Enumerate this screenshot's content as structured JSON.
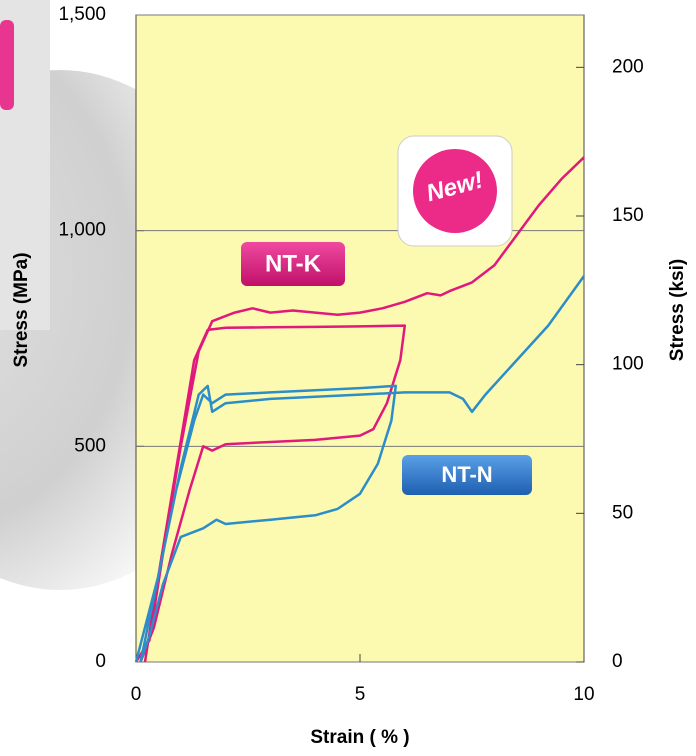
{
  "chart_data": {
    "type": "line",
    "xlabel": "Strain ( % )",
    "ylabel": "Stress (MPa)",
    "y2label": "Stress (ksi)",
    "xlim": [
      0,
      10
    ],
    "xticks": [
      0,
      5,
      10
    ],
    "ylim": [
      0,
      1500
    ],
    "yticks": [
      0,
      500,
      {
        "value": 1000,
        "label": "1,000"
      },
      {
        "value": 1500,
        "label": "1,500"
      }
    ],
    "y2lim": [
      0,
      217.6
    ],
    "y2ticks": [
      0,
      50,
      100,
      150,
      200
    ],
    "grid": true,
    "annotations": [
      "NT-K",
      "NT-N",
      "New!"
    ],
    "series": [
      {
        "name": "NT-K",
        "color": "#e0197d",
        "x": [
          0,
          0.3,
          0.6,
          1.0,
          1.4,
          1.7,
          2.2,
          2.6,
          3.0,
          3.5,
          4.0,
          4.5,
          5.0,
          5.5,
          6.0,
          6.5,
          6.8,
          7.0,
          7.5,
          8.0,
          8.5,
          9.0,
          9.5,
          10,
          null,
          0.2,
          0.5,
          0.9,
          1.3,
          1.6,
          2.0,
          3.0,
          4.0,
          5.0,
          6.0,
          5.9,
          5.6,
          5.3,
          5.0,
          4.0,
          3.0,
          2.0,
          1.7,
          1.5,
          1.2,
          0.8,
          0.4,
          0.1
        ],
        "values": [
          0,
          50,
          250,
          500,
          720,
          790,
          810,
          820,
          810,
          815,
          810,
          805,
          810,
          820,
          835,
          855,
          850,
          860,
          880,
          920,
          990,
          1060,
          1120,
          1170,
          null,
          0,
          200,
          450,
          700,
          770,
          775,
          776,
          777,
          778,
          780,
          700,
          600,
          540,
          525,
          515,
          510,
          505,
          490,
          500,
          400,
          250,
          80,
          0
        ]
      },
      {
        "name": "NT-N",
        "color": "#2c8dc8",
        "x": [
          0,
          0.5,
          1.0,
          1.4,
          1.6,
          1.7,
          2.0,
          3.0,
          4.0,
          5.0,
          6.0,
          7.0,
          7.3,
          7.5,
          7.8,
          8.5,
          9.2,
          10,
          null,
          0.1,
          0.5,
          0.9,
          1.3,
          1.5,
          1.7,
          2.0,
          3.0,
          4.0,
          5.0,
          5.8,
          5.7,
          5.4,
          5.0,
          4.5,
          4.0,
          3.0,
          2.0,
          1.8,
          1.5,
          1.0,
          0.6,
          0.3,
          0.1
        ],
        "values": [
          0,
          200,
          450,
          620,
          640,
          580,
          600,
          610,
          615,
          620,
          625,
          625,
          610,
          580,
          620,
          700,
          780,
          895,
          null,
          0,
          200,
          400,
          560,
          620,
          600,
          620,
          625,
          630,
          635,
          640,
          560,
          460,
          390,
          355,
          340,
          330,
          320,
          330,
          310,
          290,
          180,
          60,
          0
        ]
      }
    ]
  }
}
